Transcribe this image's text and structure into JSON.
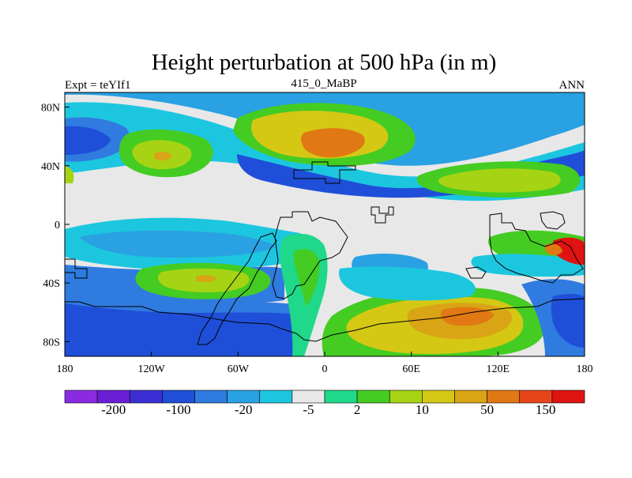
{
  "chart_data": {
    "type": "heatmap",
    "title": "Height perturbation at 500 hPa (in m)",
    "left_label": "Expt = teYIf1",
    "center_label": "415_0_MaBP",
    "right_label": "ANN",
    "x_ticks": [
      "180",
      "120W",
      "60W",
      "0",
      "60E",
      "120E",
      "180"
    ],
    "x_range": [
      -180,
      180
    ],
    "y_ticks": [
      "80N",
      "40N",
      "0",
      "40S",
      "80S"
    ],
    "y_range": [
      -90,
      90
    ],
    "colorbar_labels": [
      "-200",
      "-100",
      "-20",
      "-5",
      "2",
      "10",
      "50",
      "150"
    ],
    "colorbar_colors": [
      "#8a2be2",
      "#6a1fd6",
      "#3b2fd4",
      "#1f4fd8",
      "#2f7be0",
      "#29a1e2",
      "#1dc6df",
      "#e8e8e8",
      "#1fd88a",
      "#44cc22",
      "#a6d414",
      "#d4c814",
      "#d9a415",
      "#e07813",
      "#e8461a",
      "#e01313"
    ],
    "bins": [
      {
        "label": "-200",
        "value": -200
      },
      {
        "label": "-100",
        "value": -100
      },
      {
        "label": "-20",
        "value": -20
      },
      {
        "label": "-5",
        "value": -5
      },
      {
        "label": "2",
        "value": 2
      },
      {
        "label": "10",
        "value": 10
      },
      {
        "label": "50",
        "value": 50
      },
      {
        "label": "150",
        "value": 150
      }
    ]
  }
}
